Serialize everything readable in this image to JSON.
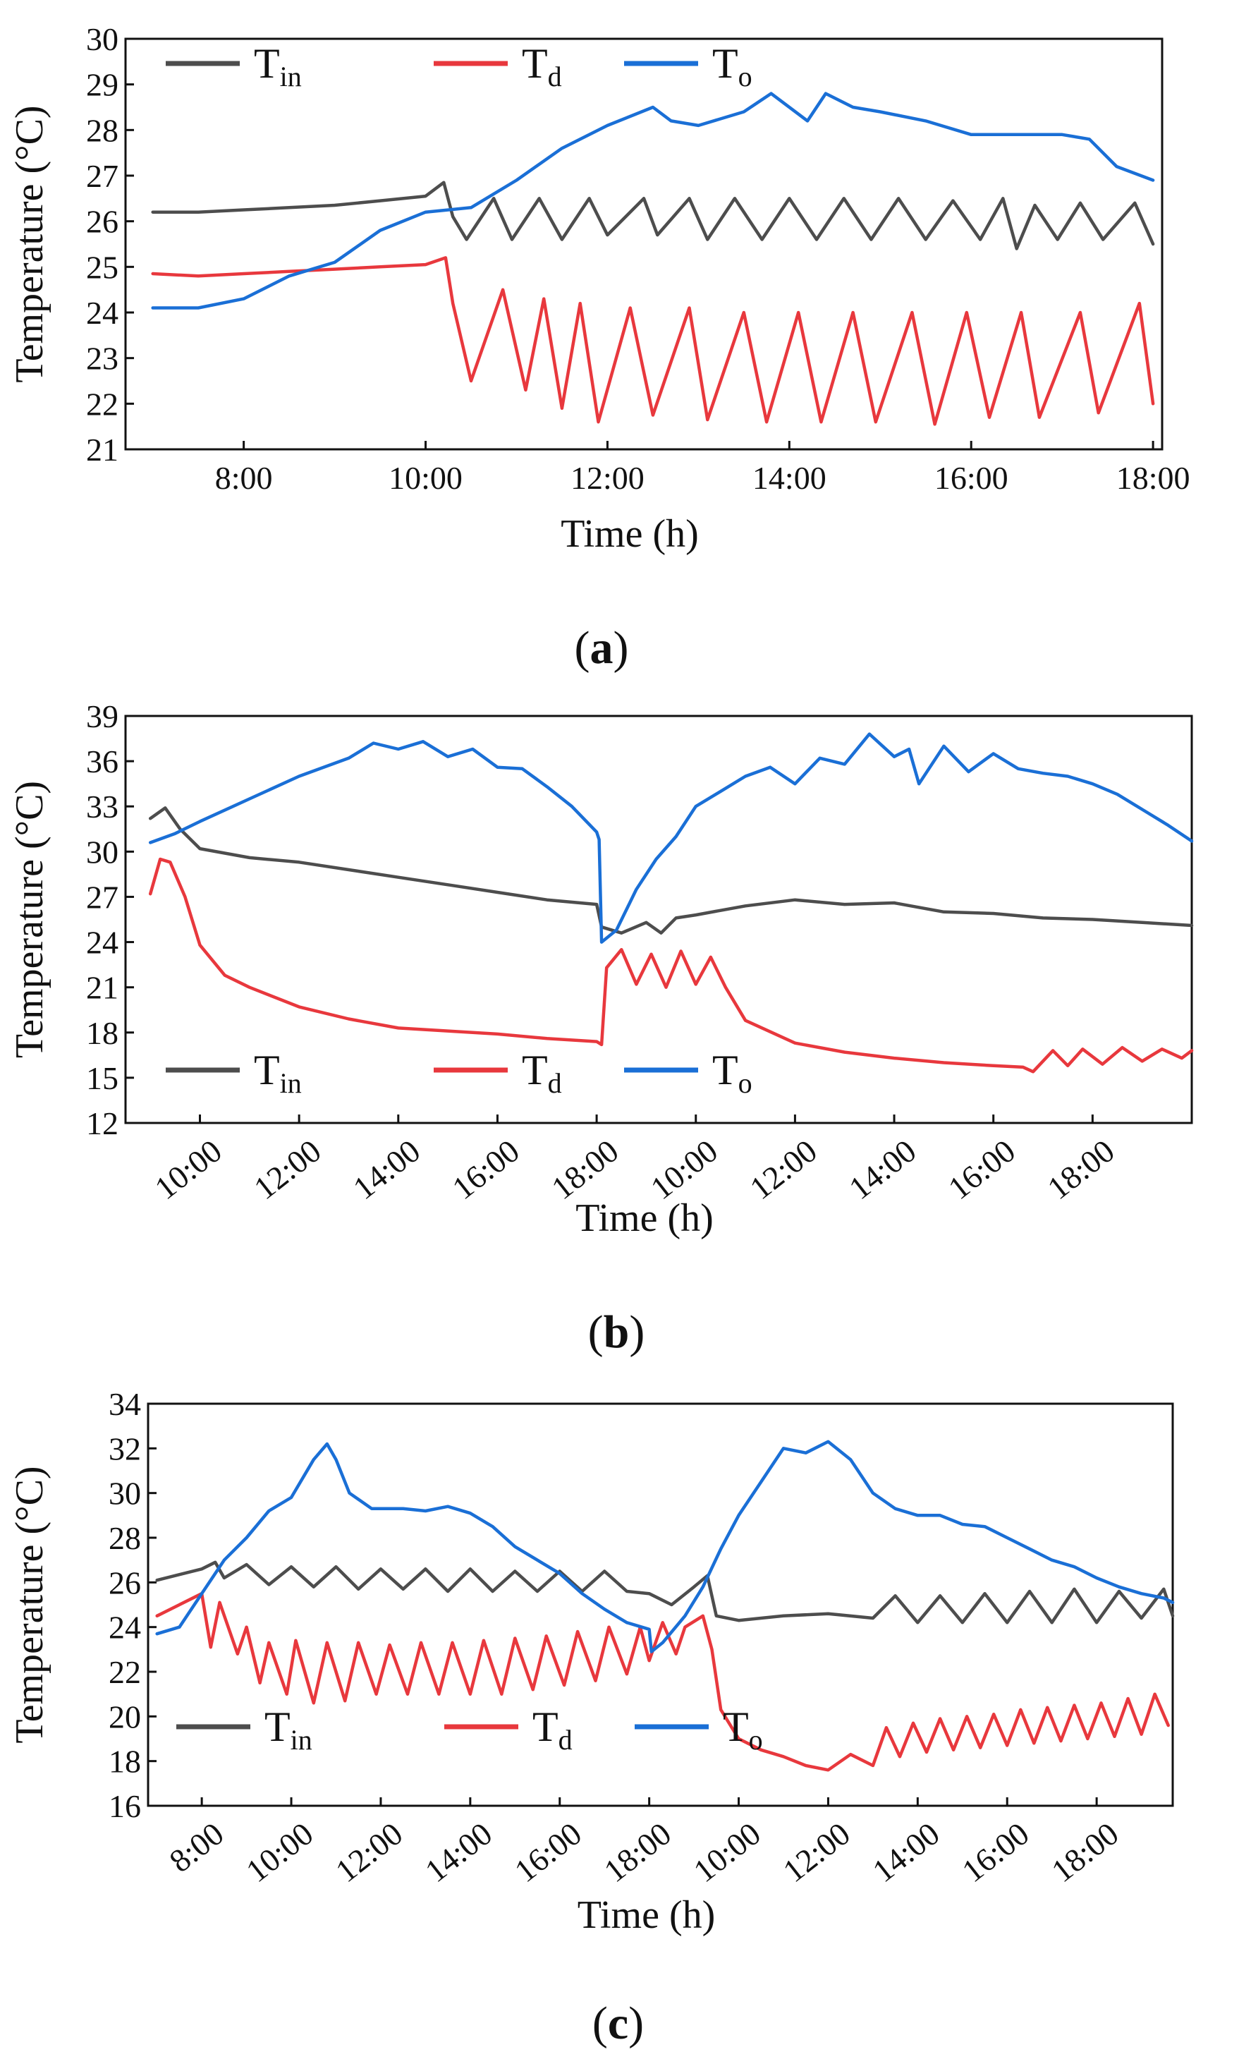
{
  "figure_labels": [
    "(a)",
    "(b)",
    "(c)"
  ],
  "colors": {
    "T_in": "#4d4d4d",
    "T_d": "#e8383d",
    "T_o": "#1a6fd6"
  },
  "chart_data": [
    {
      "id": "a",
      "type": "line",
      "label": "(a)",
      "xlabel": "Time (h)",
      "ylabel": "Temperature (°C)",
      "xlim": [
        6.7,
        18.1
      ],
      "ylim": [
        21,
        30
      ],
      "yticks": [
        21,
        22,
        23,
        24,
        25,
        26,
        27,
        28,
        29,
        30
      ],
      "xticks": [
        {
          "x": 8,
          "label": "8:00"
        },
        {
          "x": 10,
          "label": "10:00"
        },
        {
          "x": 12,
          "label": "12:00"
        },
        {
          "x": 14,
          "label": "14:00"
        },
        {
          "x": 16,
          "label": "16:00"
        },
        {
          "x": 18,
          "label": "18:00"
        }
      ],
      "rotate_xticks": false,
      "legend": {
        "placement": "top-left",
        "entries": [
          {
            "main": "T",
            "sub": "in"
          },
          {
            "main": "T",
            "sub": "d"
          },
          {
            "main": "T",
            "sub": "o"
          }
        ]
      },
      "series": [
        {
          "name": "T_in",
          "color": "#4d4d4d",
          "x": [
            7.0,
            7.5,
            8.0,
            8.5,
            9.0,
            9.5,
            10.0,
            10.2,
            10.3,
            10.45,
            10.75,
            10.95,
            11.25,
            11.5,
            11.8,
            12.0,
            12.4,
            12.55,
            12.9,
            13.1,
            13.4,
            13.7,
            14.0,
            14.3,
            14.6,
            14.9,
            15.2,
            15.5,
            15.8,
            16.1,
            16.35,
            16.5,
            16.7,
            16.95,
            17.2,
            17.45,
            17.8,
            18.0
          ],
          "y": [
            26.2,
            26.2,
            26.25,
            26.3,
            26.35,
            26.45,
            26.55,
            26.85,
            26.1,
            25.6,
            26.5,
            25.6,
            26.5,
            25.6,
            26.5,
            25.7,
            26.5,
            25.7,
            26.5,
            25.6,
            26.5,
            25.6,
            26.5,
            25.6,
            26.5,
            25.6,
            26.5,
            25.6,
            26.45,
            25.6,
            26.5,
            25.4,
            26.35,
            25.6,
            26.4,
            25.6,
            26.4,
            25.5
          ]
        },
        {
          "name": "T_d",
          "color": "#e8383d",
          "x": [
            7.0,
            7.5,
            8.0,
            8.5,
            9.0,
            9.5,
            10.0,
            10.22,
            10.3,
            10.5,
            10.85,
            11.1,
            11.3,
            11.5,
            11.7,
            11.9,
            12.25,
            12.5,
            12.9,
            13.1,
            13.5,
            13.75,
            14.1,
            14.35,
            14.7,
            14.95,
            15.35,
            15.6,
            15.95,
            16.2,
            16.55,
            16.75,
            17.2,
            17.4,
            17.85,
            18.0
          ],
          "y": [
            24.85,
            24.8,
            24.85,
            24.9,
            24.95,
            25.0,
            25.05,
            25.2,
            24.2,
            22.5,
            24.5,
            22.3,
            24.3,
            21.9,
            24.2,
            21.6,
            24.1,
            21.75,
            24.1,
            21.65,
            24.0,
            21.6,
            24.0,
            21.6,
            24.0,
            21.6,
            24.0,
            21.55,
            24.0,
            21.7,
            24.0,
            21.7,
            24.0,
            21.8,
            24.2,
            22.0
          ]
        },
        {
          "name": "T_o",
          "color": "#1a6fd6",
          "x": [
            7.0,
            7.5,
            8.0,
            8.5,
            9.0,
            9.5,
            10.0,
            10.5,
            11.0,
            11.5,
            12.0,
            12.5,
            12.7,
            13.0,
            13.5,
            13.8,
            14.2,
            14.4,
            14.7,
            15.0,
            15.5,
            16.0,
            16.5,
            17.0,
            17.3,
            17.6,
            18.0
          ],
          "y": [
            24.1,
            24.1,
            24.3,
            24.8,
            25.1,
            25.8,
            26.2,
            26.3,
            26.9,
            27.6,
            28.1,
            28.5,
            28.2,
            28.1,
            28.4,
            28.8,
            28.2,
            28.8,
            28.5,
            28.4,
            28.2,
            27.9,
            27.9,
            27.9,
            27.8,
            27.2,
            26.9
          ]
        }
      ]
    },
    {
      "id": "b",
      "type": "line",
      "label": "(b)",
      "xlabel": "Time (h)",
      "ylabel": "Temperature (°C)",
      "xlim": [
        8.5,
        30.0
      ],
      "ylim": [
        12,
        39
      ],
      "yticks": [
        12,
        15,
        18,
        21,
        24,
        27,
        30,
        33,
        36,
        39
      ],
      "xticks": [
        {
          "x": 10,
          "label": "10:00"
        },
        {
          "x": 12,
          "label": "12:00"
        },
        {
          "x": 14,
          "label": "14:00"
        },
        {
          "x": 16,
          "label": "16:00"
        },
        {
          "x": 18,
          "label": "18:00"
        },
        {
          "x": 20,
          "label": "10:00"
        },
        {
          "x": 22,
          "label": "12:00"
        },
        {
          "x": 24,
          "label": "14:00"
        },
        {
          "x": 26,
          "label": "16:00"
        },
        {
          "x": 28,
          "label": "18:00"
        }
      ],
      "rotate_xticks": true,
      "legend": {
        "placement": "bottom-left",
        "entries": [
          {
            "main": "T",
            "sub": "in"
          },
          {
            "main": "T",
            "sub": "d"
          },
          {
            "main": "T",
            "sub": "o"
          }
        ]
      },
      "series": [
        {
          "name": "T_in",
          "color": "#4d4d4d",
          "x": [
            9.0,
            9.3,
            9.6,
            10.0,
            11.0,
            12.0,
            13.0,
            14.0,
            15.0,
            16.0,
            17.0,
            18.0,
            18.1,
            18.5,
            19.0,
            19.3,
            19.6,
            20.0,
            20.5,
            21.0,
            22.0,
            23.0,
            24.0,
            25.0,
            26.0,
            27.0,
            28.0,
            29.0,
            30.0
          ],
          "y": [
            32.2,
            32.9,
            31.5,
            30.2,
            29.6,
            29.3,
            28.8,
            28.3,
            27.8,
            27.3,
            26.8,
            26.5,
            25.0,
            24.6,
            25.3,
            24.6,
            25.6,
            25.8,
            26.1,
            26.4,
            26.8,
            26.5,
            26.6,
            26.0,
            25.9,
            25.6,
            25.5,
            25.3,
            25.1
          ]
        },
        {
          "name": "T_d",
          "color": "#e8383d",
          "x": [
            9.0,
            9.2,
            9.4,
            9.7,
            10.0,
            10.5,
            11.0,
            12.0,
            13.0,
            14.0,
            15.0,
            16.0,
            17.0,
            18.0,
            18.1,
            18.2,
            18.5,
            18.8,
            19.1,
            19.4,
            19.7,
            20.0,
            20.3,
            20.6,
            21.0,
            22.0,
            23.0,
            24.0,
            25.0,
            26.0,
            26.6,
            26.8,
            27.2,
            27.5,
            27.8,
            28.2,
            28.6,
            29.0,
            29.4,
            29.8,
            30.0
          ],
          "y": [
            27.2,
            29.5,
            29.3,
            27.0,
            23.8,
            21.8,
            21.0,
            19.7,
            18.9,
            18.3,
            18.1,
            17.9,
            17.6,
            17.4,
            17.2,
            22.3,
            23.5,
            21.2,
            23.2,
            21.0,
            23.4,
            21.2,
            23.0,
            21.0,
            18.8,
            17.3,
            16.7,
            16.3,
            16.0,
            15.8,
            15.7,
            15.4,
            16.8,
            15.8,
            16.9,
            15.9,
            17.0,
            16.1,
            16.9,
            16.3,
            16.8
          ]
        },
        {
          "name": "T_o",
          "color": "#1a6fd6",
          "x": [
            9.0,
            9.5,
            10.0,
            11.0,
            12.0,
            13.0,
            13.5,
            14.0,
            14.5,
            15.0,
            15.5,
            16.0,
            16.5,
            17.0,
            17.5,
            18.0,
            18.05,
            18.1,
            18.4,
            18.8,
            19.2,
            19.6,
            20.0,
            20.5,
            21.0,
            21.5,
            22.0,
            22.5,
            23.0,
            23.5,
            24.0,
            24.3,
            24.5,
            25.0,
            25.5,
            26.0,
            26.5,
            27.0,
            27.5,
            28.0,
            28.5,
            29.0,
            29.5,
            30.0
          ],
          "y": [
            30.6,
            31.2,
            32.0,
            33.5,
            35.0,
            36.2,
            37.2,
            36.8,
            37.3,
            36.3,
            36.8,
            35.6,
            35.5,
            34.3,
            33.0,
            31.3,
            30.8,
            24.0,
            24.8,
            27.5,
            29.5,
            31.0,
            33.0,
            34.0,
            35.0,
            35.6,
            34.5,
            36.2,
            35.8,
            37.8,
            36.3,
            36.8,
            34.5,
            37.0,
            35.3,
            36.5,
            35.5,
            35.2,
            35.0,
            34.5,
            33.8,
            32.8,
            31.8,
            30.7
          ]
        }
      ]
    },
    {
      "id": "c",
      "type": "line",
      "label": "(c)",
      "xlabel": "Time (h)",
      "ylabel": "Temperature (°C)",
      "xlim": [
        6.8,
        29.7
      ],
      "ylim": [
        16,
        34
      ],
      "yticks": [
        16,
        18,
        20,
        22,
        24,
        26,
        28,
        30,
        32,
        34
      ],
      "xticks": [
        {
          "x": 8,
          "label": "8:00"
        },
        {
          "x": 10,
          "label": "10:00"
        },
        {
          "x": 12,
          "label": "12:00"
        },
        {
          "x": 14,
          "label": "14:00"
        },
        {
          "x": 16,
          "label": "16:00"
        },
        {
          "x": 18,
          "label": "18:00"
        },
        {
          "x": 20,
          "label": "10:00"
        },
        {
          "x": 22,
          "label": "12:00"
        },
        {
          "x": 24,
          "label": "14:00"
        },
        {
          "x": 26,
          "label": "16:00"
        },
        {
          "x": 28,
          "label": "18:00"
        }
      ],
      "rotate_xticks": true,
      "legend": {
        "placement": "bottom-left",
        "entries": [
          {
            "main": "T",
            "sub": "in"
          },
          {
            "main": "T",
            "sub": "d"
          },
          {
            "main": "T",
            "sub": "o"
          }
        ]
      },
      "series": [
        {
          "name": "T_in",
          "color": "#4d4d4d",
          "x": [
            7.0,
            8.0,
            8.3,
            8.5,
            9.0,
            9.5,
            10.0,
            10.5,
            11.0,
            11.5,
            12.0,
            12.5,
            13.0,
            13.5,
            14.0,
            14.5,
            15.0,
            15.5,
            16.0,
            16.5,
            17.0,
            17.5,
            18.0,
            18.5,
            19.0,
            19.3,
            19.5,
            20.0,
            21.0,
            22.0,
            23.0,
            23.5,
            24.0,
            24.5,
            25.0,
            25.5,
            26.0,
            26.5,
            27.0,
            27.5,
            28.0,
            28.5,
            29.0,
            29.5,
            29.7
          ],
          "y": [
            26.1,
            26.6,
            26.9,
            26.2,
            26.8,
            25.9,
            26.7,
            25.8,
            26.7,
            25.7,
            26.6,
            25.7,
            26.6,
            25.6,
            26.6,
            25.6,
            26.5,
            25.6,
            26.5,
            25.6,
            26.5,
            25.6,
            25.5,
            25.0,
            25.8,
            26.3,
            24.5,
            24.3,
            24.5,
            24.6,
            24.4,
            25.4,
            24.2,
            25.4,
            24.2,
            25.5,
            24.2,
            25.6,
            24.2,
            25.7,
            24.2,
            25.6,
            24.4,
            25.7,
            24.5
          ]
        },
        {
          "name": "T_d",
          "color": "#e8383d",
          "x": [
            7.0,
            7.5,
            8.0,
            8.2,
            8.4,
            8.8,
            9.0,
            9.3,
            9.5,
            9.9,
            10.1,
            10.5,
            10.8,
            11.2,
            11.5,
            11.9,
            12.2,
            12.6,
            12.9,
            13.3,
            13.6,
            14.0,
            14.3,
            14.7,
            15.0,
            15.4,
            15.7,
            16.1,
            16.4,
            16.8,
            17.1,
            17.5,
            17.8,
            18.0,
            18.3,
            18.6,
            18.8,
            19.2,
            19.4,
            19.6,
            20.0,
            20.5,
            21.0,
            21.5,
            22.0,
            22.5,
            23.0,
            23.3,
            23.6,
            23.9,
            24.2,
            24.5,
            24.8,
            25.1,
            25.4,
            25.7,
            26.0,
            26.3,
            26.6,
            26.9,
            27.2,
            27.5,
            27.8,
            28.1,
            28.4,
            28.7,
            29.0,
            29.3,
            29.6
          ],
          "y": [
            24.5,
            25.0,
            25.5,
            23.1,
            25.1,
            22.8,
            24.0,
            21.5,
            23.3,
            21.0,
            23.4,
            20.6,
            23.3,
            20.7,
            23.3,
            21.0,
            23.2,
            21.0,
            23.3,
            21.0,
            23.3,
            21.0,
            23.4,
            21.0,
            23.5,
            21.2,
            23.6,
            21.4,
            23.8,
            21.6,
            24.0,
            21.9,
            24.0,
            22.5,
            24.2,
            22.8,
            24.0,
            24.5,
            23.0,
            20.3,
            19.0,
            18.5,
            18.2,
            17.8,
            17.6,
            18.3,
            17.8,
            19.5,
            18.2,
            19.7,
            18.4,
            19.9,
            18.5,
            20.0,
            18.6,
            20.1,
            18.7,
            20.3,
            18.8,
            20.4,
            18.9,
            20.5,
            19.0,
            20.6,
            19.1,
            20.8,
            19.2,
            21.0,
            19.6
          ]
        },
        {
          "name": "T_o",
          "color": "#1a6fd6",
          "x": [
            7.0,
            7.5,
            8.0,
            8.5,
            9.0,
            9.5,
            10.0,
            10.5,
            10.8,
            11.0,
            11.3,
            11.8,
            12.5,
            13.0,
            13.5,
            14.0,
            14.5,
            15.0,
            15.5,
            16.0,
            16.5,
            17.0,
            17.5,
            18.0,
            18.05,
            18.3,
            18.8,
            19.2,
            19.6,
            20.0,
            20.5,
            21.0,
            21.5,
            22.0,
            22.5,
            23.0,
            23.5,
            24.0,
            24.5,
            25.0,
            25.5,
            26.0,
            26.5,
            27.0,
            27.5,
            28.0,
            28.5,
            29.0,
            29.5,
            29.7
          ],
          "y": [
            23.7,
            24.0,
            25.5,
            27.0,
            28.0,
            29.2,
            29.8,
            31.5,
            32.2,
            31.5,
            30.0,
            29.3,
            29.3,
            29.2,
            29.4,
            29.1,
            28.5,
            27.6,
            27.0,
            26.4,
            25.5,
            24.8,
            24.2,
            23.9,
            22.9,
            23.3,
            24.5,
            25.8,
            27.5,
            29.0,
            30.5,
            32.0,
            31.8,
            32.3,
            31.5,
            30.0,
            29.3,
            29.0,
            29.0,
            28.6,
            28.5,
            28.0,
            27.5,
            27.0,
            26.7,
            26.2,
            25.8,
            25.5,
            25.3,
            25.1
          ]
        }
      ]
    }
  ]
}
